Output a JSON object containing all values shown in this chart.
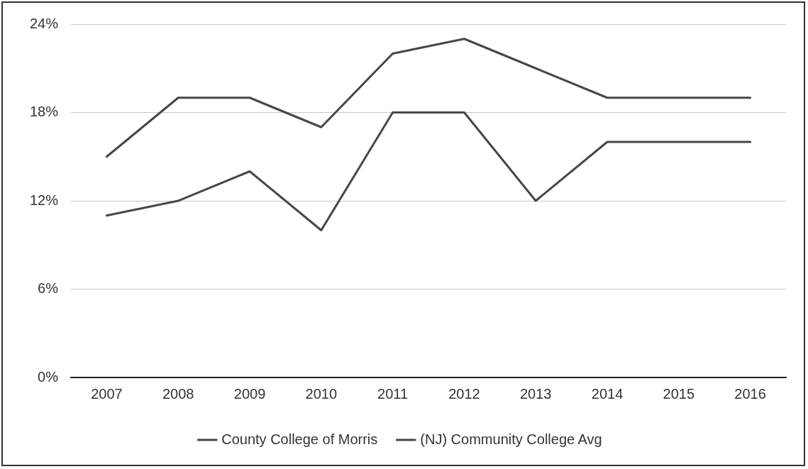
{
  "chart_data": {
    "type": "line",
    "categories": [
      "2007",
      "2008",
      "2009",
      "2010",
      "2011",
      "2012",
      "2013",
      "2014",
      "2015",
      "2016"
    ],
    "series": [
      {
        "name": "County College of Morris",
        "color": "#474747",
        "values": [
          15,
          19,
          19,
          17,
          22,
          23,
          21,
          19,
          19,
          19
        ]
      },
      {
        "name": "(NJ) Community College Avg",
        "color": "#474747",
        "values": [
          11,
          12,
          14,
          10,
          18,
          18,
          12,
          16,
          16,
          16
        ]
      }
    ],
    "ylim": [
      0,
      24
    ],
    "yticks": [
      {
        "value": 0,
        "label": "0%"
      },
      {
        "value": 6,
        "label": "6%"
      },
      {
        "value": 12,
        "label": "12%"
      },
      {
        "value": 18,
        "label": "18%"
      },
      {
        "value": 24,
        "label": "24%"
      }
    ],
    "grid": "y",
    "legend": "bottom",
    "marker": "none",
    "line_style": "solid"
  }
}
